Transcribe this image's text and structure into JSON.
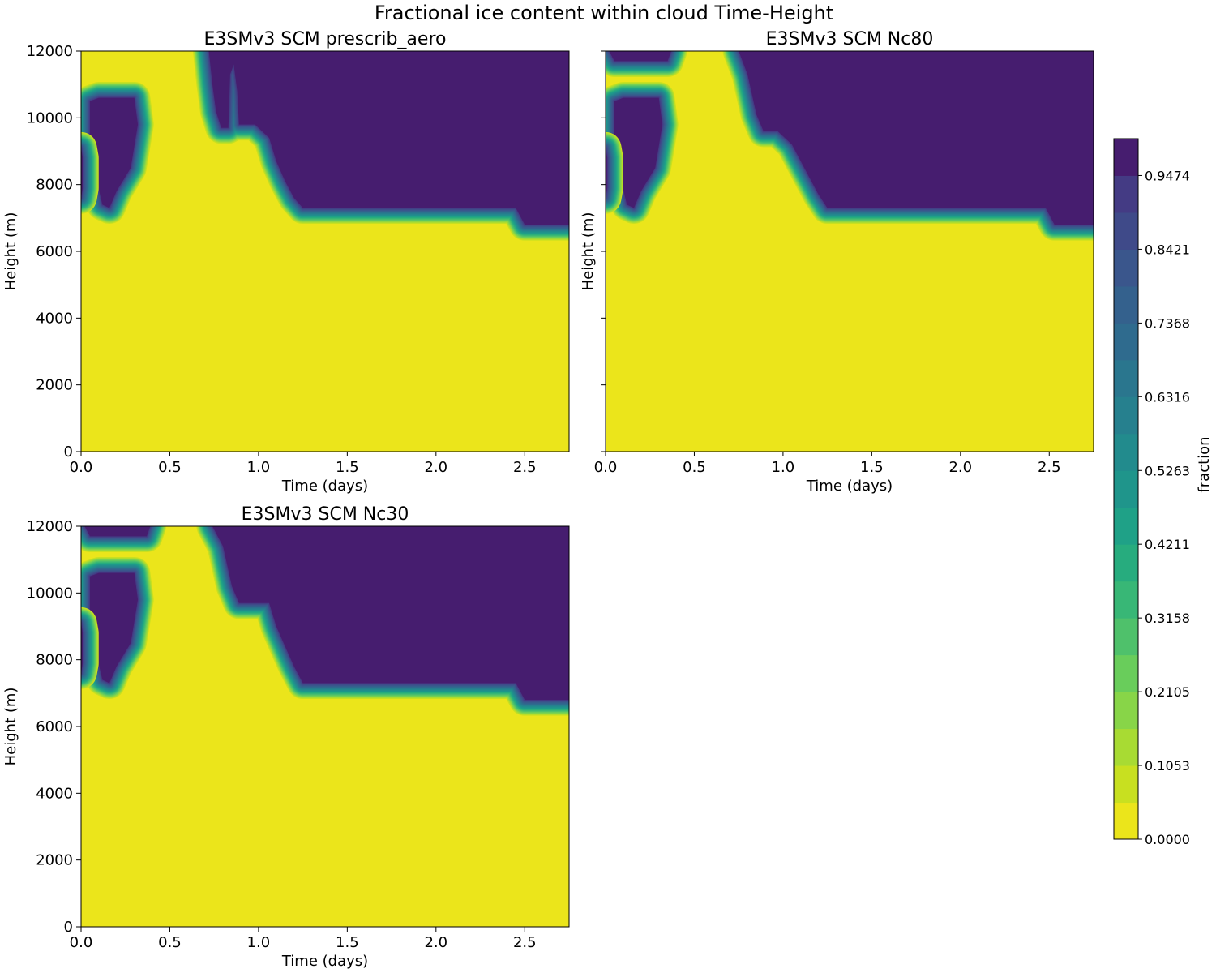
{
  "suptitle": "Fractional ice content within cloud Time-Height",
  "colorbar": {
    "label": "fraction",
    "ticks": [
      "0.0000",
      "0.1053",
      "0.2105",
      "0.3158",
      "0.4211",
      "0.5263",
      "0.6316",
      "0.7368",
      "0.8421",
      "0.9474"
    ],
    "levels": 19,
    "vmin": 0.0,
    "vmax": 1.0,
    "colors": [
      "#ebe51b",
      "#c8e020",
      "#a8db33",
      "#88d548",
      "#69cd5b",
      "#4fc16b",
      "#38b776",
      "#27ac7e",
      "#1fa187",
      "#1f958b",
      "#228b8d",
      "#26808e",
      "#2a768e",
      "#2f6b8e",
      "#34618d",
      "#3a568c",
      "#3f4a89",
      "#443b84",
      "#461d6f"
    ]
  },
  "chart_data": [
    {
      "type": "heatmap",
      "title": "E3SMv3 SCM prescrib_aero",
      "xlabel": "Time (days)",
      "ylabel": "Height (m)",
      "xlim": [
        0.0,
        2.75
      ],
      "ylim": [
        0,
        12000
      ],
      "xticks": [
        "0.0",
        "0.5",
        "1.0",
        "1.5",
        "2.0",
        "2.5"
      ],
      "yticks": [
        "0",
        "2000",
        "4000",
        "6000",
        "8000",
        "10000",
        "12000"
      ],
      "ice_regions": [
        {
          "name": "early-ice-pocket",
          "boundary": [
            [
              0.05,
              10500
            ],
            [
              0.1,
              10600
            ],
            [
              0.3,
              10600
            ],
            [
              0.32,
              9800
            ],
            [
              0.28,
              8500
            ],
            [
              0.2,
              7800
            ],
            [
              0.16,
              7300
            ],
            [
              0.12,
              7400
            ],
            [
              0.08,
              8300
            ],
            [
              0.05,
              9200
            ]
          ]
        },
        {
          "name": "left-edge-sliver",
          "boundary": [
            [
              0.0,
              9100
            ],
            [
              0.01,
              8800
            ],
            [
              0.01,
              7900
            ],
            [
              0.0,
              7600
            ]
          ]
        },
        {
          "name": "upper-ice-mass",
          "boundary": [
            [
              0.72,
              12000
            ],
            [
              0.74,
              11000
            ],
            [
              0.76,
              10200
            ],
            [
              0.79,
              9700
            ],
            [
              0.83,
              9700
            ],
            [
              0.84,
              11300
            ],
            [
              0.86,
              11600
            ],
            [
              0.88,
              10800
            ],
            [
              0.89,
              9800
            ],
            [
              0.98,
              9800
            ],
            [
              1.06,
              9400
            ],
            [
              1.1,
              8700
            ],
            [
              1.15,
              8100
            ],
            [
              1.2,
              7600
            ],
            [
              1.25,
              7300
            ],
            [
              2.45,
              7300
            ],
            [
              2.5,
              6800
            ],
            [
              2.75,
              6800
            ],
            [
              2.75,
              12000
            ]
          ]
        }
      ]
    },
    {
      "type": "heatmap",
      "title": "E3SMv3 SCM Nc80",
      "xlabel": "Time (days)",
      "ylabel": "Height (m)",
      "xlim": [
        0.0,
        2.75
      ],
      "ylim": [
        0,
        12000
      ],
      "xticks": [
        "0.0",
        "0.5",
        "1.0",
        "1.5",
        "2.0",
        "2.5"
      ],
      "yticks": [
        "0",
        "2000",
        "4000",
        "6000",
        "8000",
        "10000",
        "12000"
      ],
      "ice_regions": [
        {
          "name": "top-ice-strip",
          "boundary": [
            [
              0.02,
              12000
            ],
            [
              0.37,
              12000
            ],
            [
              0.35,
              11700
            ],
            [
              0.05,
              11700
            ]
          ]
        },
        {
          "name": "early-ice-pocket",
          "boundary": [
            [
              0.05,
              10500
            ],
            [
              0.1,
              10600
            ],
            [
              0.3,
              10600
            ],
            [
              0.32,
              9800
            ],
            [
              0.28,
              8500
            ],
            [
              0.2,
              7800
            ],
            [
              0.16,
              7300
            ],
            [
              0.12,
              7400
            ],
            [
              0.08,
              8300
            ],
            [
              0.05,
              9200
            ]
          ]
        },
        {
          "name": "left-edge-sliver",
          "boundary": [
            [
              0.0,
              9100
            ],
            [
              0.01,
              8800
            ],
            [
              0.01,
              7900
            ],
            [
              0.0,
              7600
            ]
          ]
        },
        {
          "name": "upper-ice-mass",
          "boundary": [
            [
              0.75,
              12000
            ],
            [
              0.8,
              11300
            ],
            [
              0.85,
              10100
            ],
            [
              0.89,
              9600
            ],
            [
              0.97,
              9600
            ],
            [
              1.05,
              9200
            ],
            [
              1.1,
              8700
            ],
            [
              1.15,
              8200
            ],
            [
              1.2,
              7700
            ],
            [
              1.25,
              7300
            ],
            [
              2.48,
              7300
            ],
            [
              2.53,
              6800
            ],
            [
              2.75,
              6800
            ],
            [
              2.75,
              12000
            ]
          ]
        }
      ]
    },
    {
      "type": "heatmap",
      "title": "E3SMv3 SCM Nc30",
      "xlabel": "Time (days)",
      "ylabel": "Height (m)",
      "xlim": [
        0.0,
        2.75
      ],
      "ylim": [
        0,
        12000
      ],
      "xticks": [
        "0.0",
        "0.5",
        "1.0",
        "1.5",
        "2.0",
        "2.5"
      ],
      "yticks": [
        "0",
        "2000",
        "4000",
        "6000",
        "8000",
        "10000",
        "12000"
      ],
      "ice_regions": [
        {
          "name": "top-ice-strip",
          "boundary": [
            [
              0.02,
              12000
            ],
            [
              0.39,
              12000
            ],
            [
              0.37,
              11700
            ],
            [
              0.05,
              11700
            ]
          ]
        },
        {
          "name": "early-ice-pocket",
          "boundary": [
            [
              0.05,
              10500
            ],
            [
              0.1,
              10600
            ],
            [
              0.3,
              10600
            ],
            [
              0.32,
              9800
            ],
            [
              0.28,
              8500
            ],
            [
              0.2,
              7800
            ],
            [
              0.16,
              7300
            ],
            [
              0.12,
              7400
            ],
            [
              0.08,
              8300
            ],
            [
              0.05,
              9200
            ]
          ]
        },
        {
          "name": "left-edge-sliver",
          "boundary": [
            [
              0.0,
              9100
            ],
            [
              0.01,
              8800
            ],
            [
              0.01,
              7900
            ],
            [
              0.0,
              7600
            ]
          ]
        },
        {
          "name": "upper-ice-mass",
          "boundary": [
            [
              0.74,
              12000
            ],
            [
              0.8,
              11400
            ],
            [
              0.85,
              10200
            ],
            [
              0.89,
              9700
            ],
            [
              1.06,
              9700
            ],
            [
              1.1,
              9000
            ],
            [
              1.15,
              8400
            ],
            [
              1.2,
              7800
            ],
            [
              1.25,
              7300
            ],
            [
              2.45,
              7300
            ],
            [
              2.5,
              6800
            ],
            [
              2.75,
              6800
            ],
            [
              2.75,
              12000
            ]
          ]
        }
      ]
    }
  ]
}
